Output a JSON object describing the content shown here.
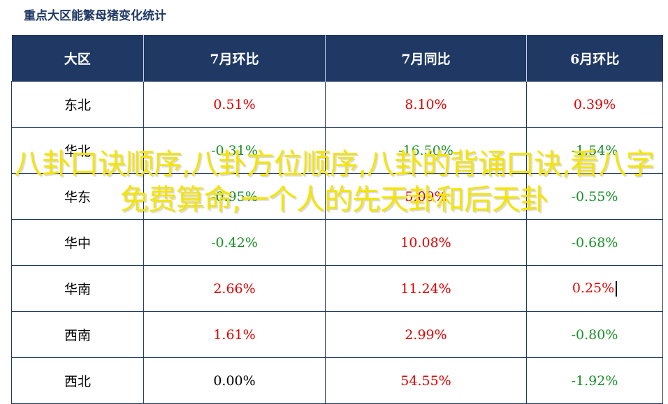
{
  "title": "重点大区能繁母猪变化统计",
  "table": {
    "headers": [
      "大区",
      "7月环比",
      "7月同比",
      "6月环比"
    ],
    "rows": [
      {
        "region": "东北",
        "mom_jul": "0.51%",
        "yoy_jul": "8.10%",
        "mom_jun": "0.39%"
      },
      {
        "region": "华北",
        "mom_jul": "-0.31%",
        "yoy_jul": "-16.50%",
        "mom_jun": "-1.54%"
      },
      {
        "region": "华东",
        "mom_jul": "-0.95%",
        "yoy_jul": "5.09%",
        "mom_jun": "-0.55%"
      },
      {
        "region": "华中",
        "mom_jul": "-0.42%",
        "yoy_jul": "10.08%",
        "mom_jun": "-0.68%"
      },
      {
        "region": "华南",
        "mom_jul": "2.66%",
        "yoy_jul": "11.24%",
        "mom_jun": "0.25%"
      },
      {
        "region": "西南",
        "mom_jul": "1.61%",
        "yoy_jul": "2.99%",
        "mom_jun": "-0.80%"
      },
      {
        "region": "西北",
        "mom_jul": "0.00%",
        "yoy_jul": "54.55%",
        "mom_jun": "-1.92%"
      }
    ]
  },
  "overlay_text": "八卦口诀顺序,八卦方位顺序,八卦的背诵口诀,看八字免费算命,一个人的先天卦和后天卦",
  "colors": {
    "header_bg": "#1f3864",
    "positive": "#e00000",
    "negative": "#1a8f2a",
    "overlay": "#f5e400"
  }
}
